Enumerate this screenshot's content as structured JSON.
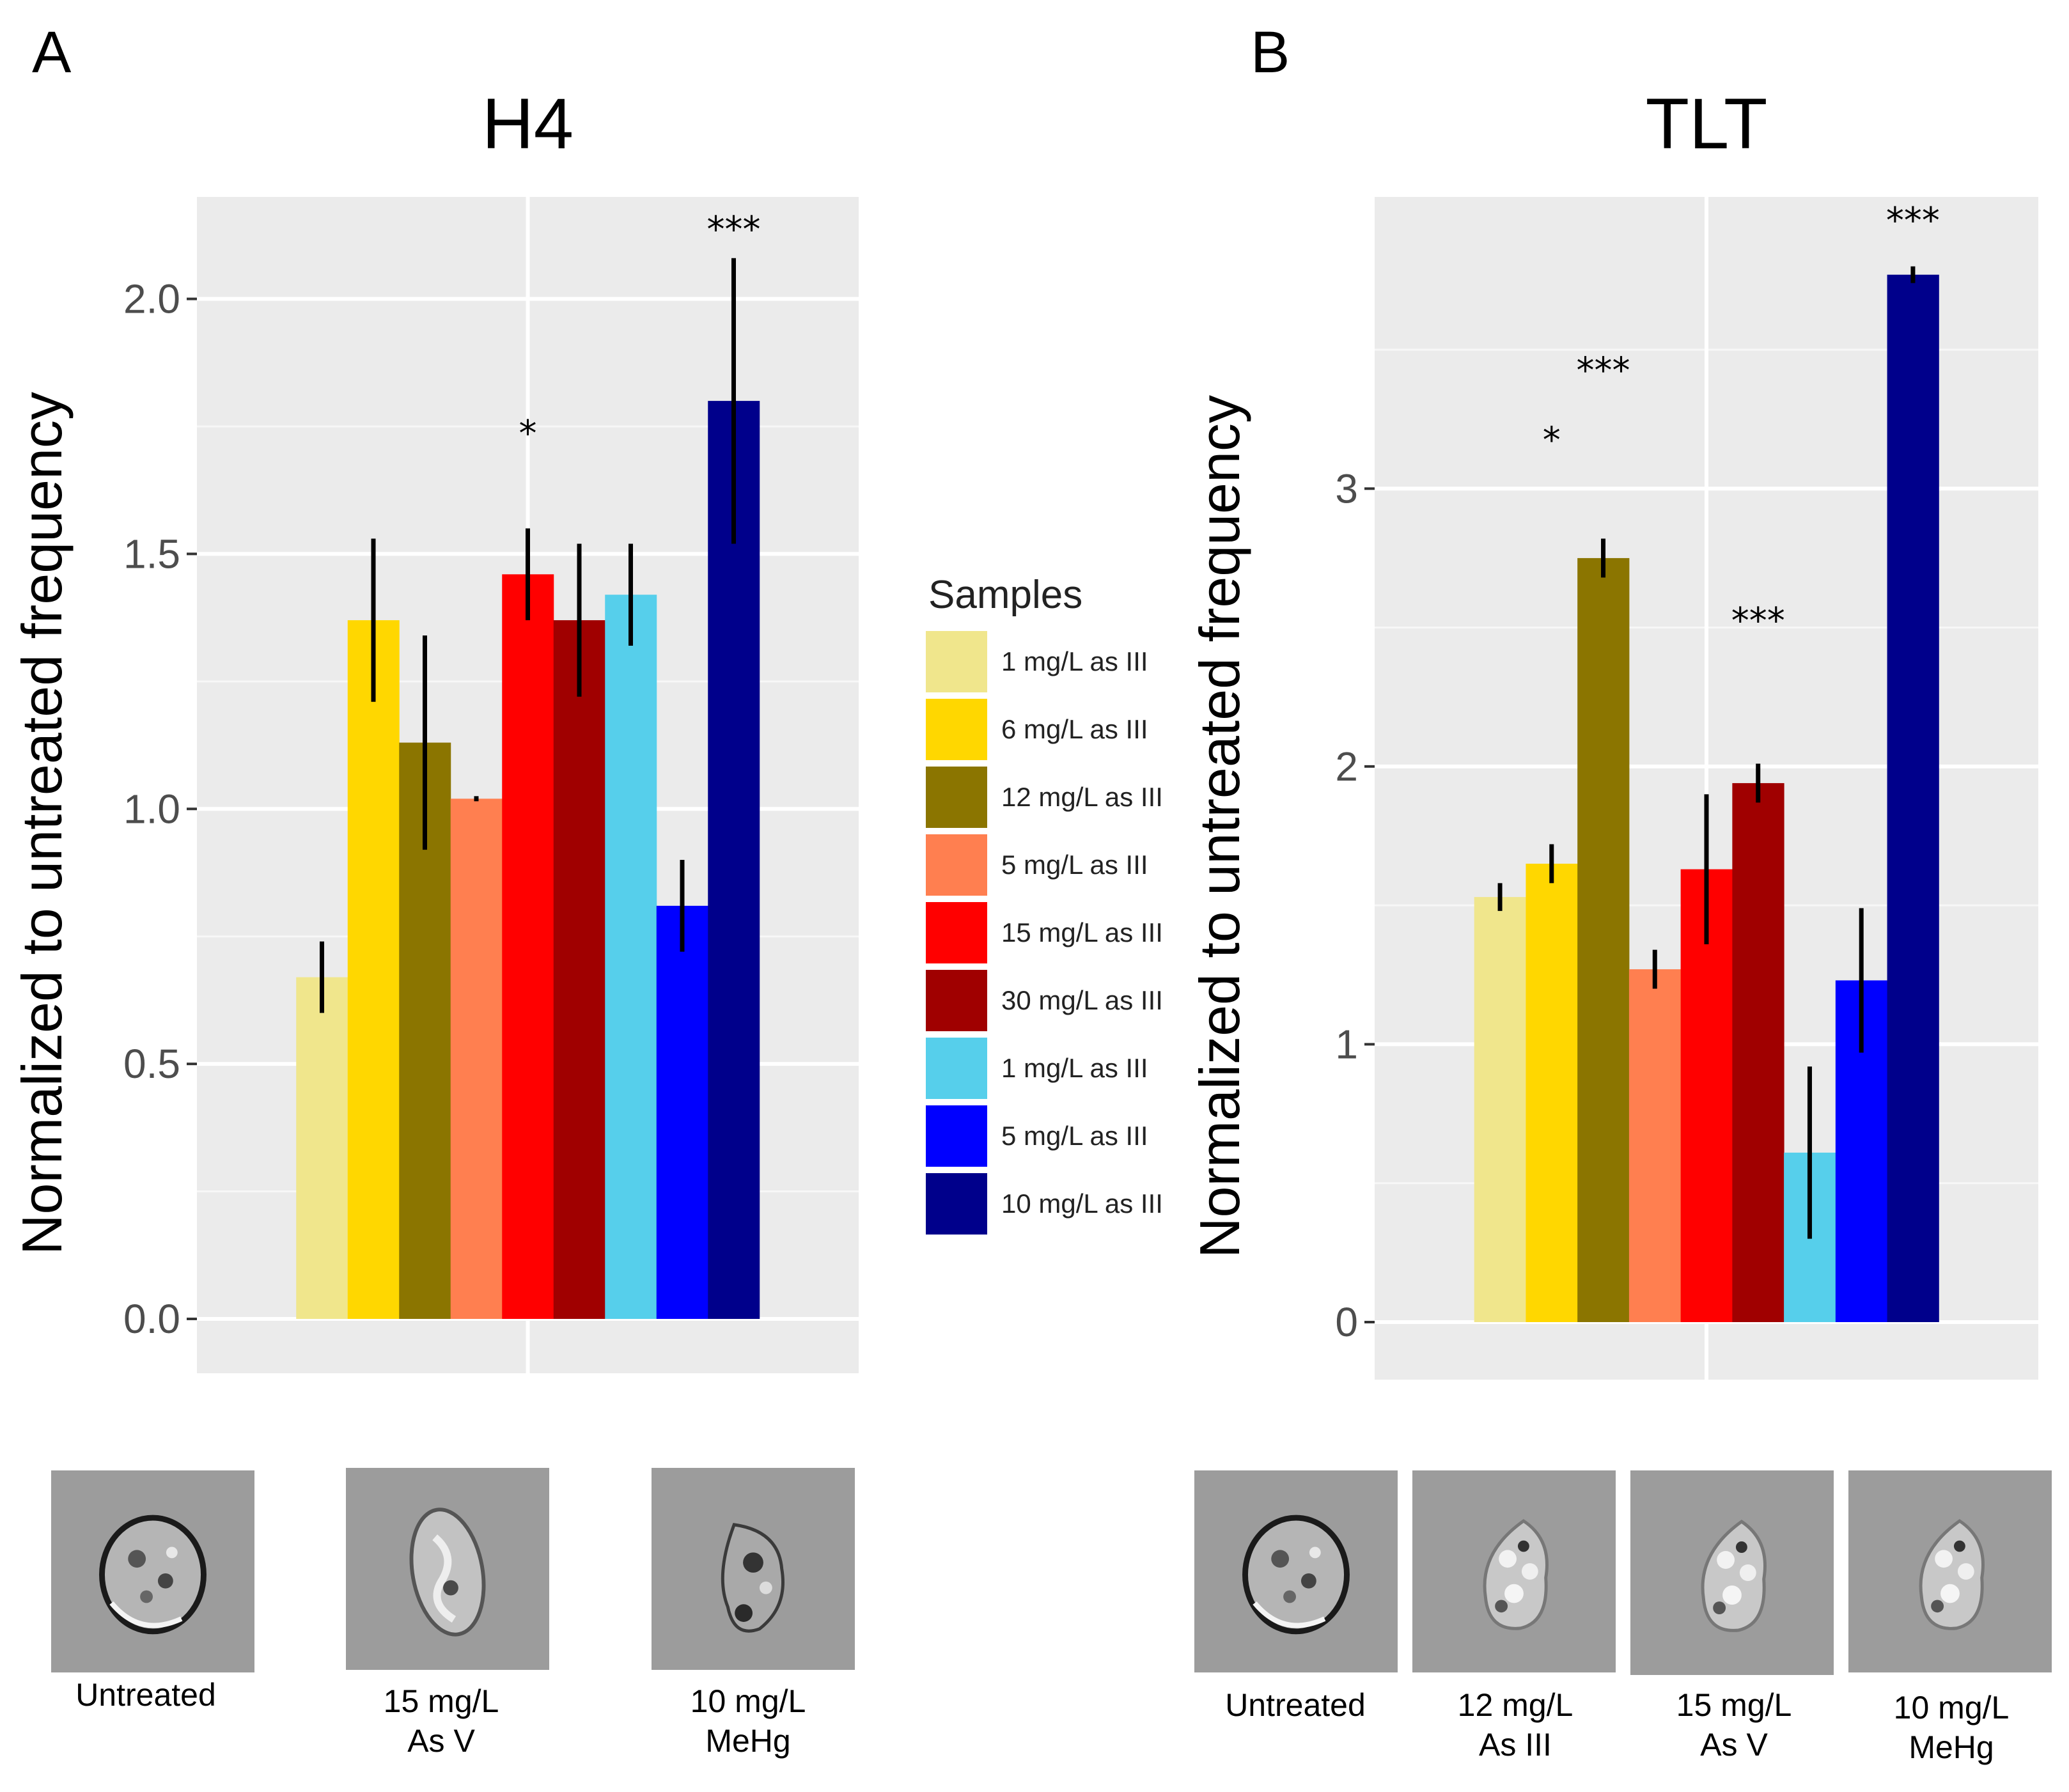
{
  "panels": {
    "A": {
      "letter": "A"
    },
    "B": {
      "letter": "B"
    }
  },
  "legend": {
    "title": "Samples",
    "items": [
      {
        "label": "1 mg/L as III",
        "color": "#F0E68C"
      },
      {
        "label": "6 mg/L as III",
        "color": "#FFD700"
      },
      {
        "label": "12 mg/L as III",
        "color": "#8B7500"
      },
      {
        "label": "5 mg/L as III",
        "color": "#FF7F50"
      },
      {
        "label": "15 mg/L as III",
        "color": "#FF0000"
      },
      {
        "label": "30 mg/L as III",
        "color": "#A00000"
      },
      {
        "label": "1 mg/L as III",
        "color": "#56CFEB"
      },
      {
        "label": "5 mg/L as III",
        "color": "#0000FF"
      },
      {
        "label": "10 mg/L as III",
        "color": "#00008B"
      }
    ]
  },
  "chart_data": [
    {
      "type": "bar",
      "title": "H4",
      "xlabel": "",
      "ylabel": "Normalized to untreated frequency",
      "ylim": [
        0,
        2.2
      ],
      "yticks": [
        0.0,
        0.5,
        1.0,
        1.5,
        2.0
      ],
      "ytick_labels": [
        "0.0",
        "0.5",
        "1.0",
        "1.5",
        "2.0"
      ],
      "grid": true,
      "legend_position": "right",
      "categories": [
        "1 mg/L as III",
        "6 mg/L as III",
        "12 mg/L as III",
        "5 mg/L as III",
        "15 mg/L as III",
        "30 mg/L as III",
        "1 mg/L as III",
        "5 mg/L as III",
        "10 mg/L as III"
      ],
      "values": [
        0.67,
        1.37,
        1.13,
        1.02,
        1.46,
        1.37,
        1.42,
        0.81,
        1.8
      ],
      "errors": [
        0.07,
        0.16,
        0.21,
        0.005,
        0.09,
        0.15,
        0.1,
        0.09,
        0.28
      ],
      "annotations": [
        {
          "bar_index": 4,
          "text": "*",
          "y": 1.75
        },
        {
          "bar_index": 8,
          "text": "***",
          "y": 2.15
        }
      ]
    },
    {
      "type": "bar",
      "title": "TLT",
      "xlabel": "",
      "ylabel": "Normalized to untreated frequency",
      "ylim": [
        0,
        4.05
      ],
      "yticks": [
        0,
        1,
        2,
        3
      ],
      "ytick_labels": [
        "0",
        "1",
        "2",
        "3"
      ],
      "grid": true,
      "legend_position": "left",
      "categories": [
        "1 mg/L as III",
        "6 mg/L as III",
        "12 mg/L as III",
        "5 mg/L as III",
        "15 mg/L as III",
        "30 mg/L as III",
        "1 mg/L as III",
        "5 mg/L as III",
        "10 mg/L as III"
      ],
      "values": [
        1.53,
        1.65,
        2.75,
        1.27,
        1.63,
        1.94,
        0.61,
        1.23,
        3.77
      ],
      "errors": [
        0.05,
        0.07,
        0.07,
        0.07,
        0.27,
        0.07,
        0.31,
        0.26,
        0.03
      ],
      "annotations": [
        {
          "bar_index": 1,
          "text": "*",
          "y": 3.2
        },
        {
          "bar_index": 2,
          "text": "***",
          "y": 3.45
        },
        {
          "bar_index": 5,
          "text": "***",
          "y": 2.55
        },
        {
          "bar_index": 8,
          "text": "***",
          "y": 3.99
        }
      ]
    }
  ],
  "cell_images": {
    "A": [
      {
        "caption": "Untreated",
        "style": "round"
      },
      {
        "caption": "15 mg/L\nAs V",
        "style": "oval"
      },
      {
        "caption": "10 mg/L\nMeHg",
        "style": "irregular"
      }
    ],
    "B": [
      {
        "caption": "Untreated",
        "style": "round"
      },
      {
        "caption": "12 mg/L\nAs III",
        "style": "bumpy"
      },
      {
        "caption": "15 mg/L\nAs V",
        "style": "bumpy"
      },
      {
        "caption": "10 mg/L\nMeHg",
        "style": "bumpy"
      }
    ]
  }
}
